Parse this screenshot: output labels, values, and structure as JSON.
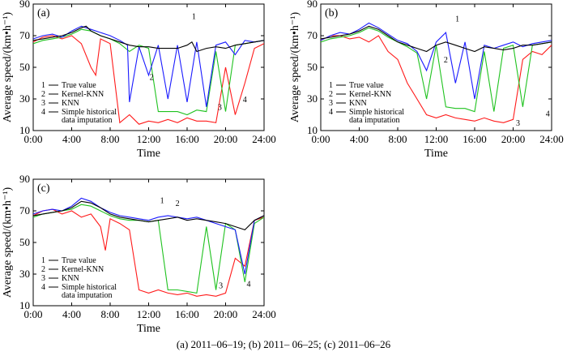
{
  "caption": "(a) 2011–06–19; (b) 2011– 06–25; (c) 2011–06–26",
  "colors": {
    "true_value": "#000000",
    "kernel_knn": "#1a1aff",
    "knn": "#1fc21f",
    "historical": "#ff1a1a"
  },
  "chart_data": [
    {
      "type": "line",
      "panel_label": "(a)",
      "xlabel": "Time",
      "ylabel": "Average speed/(km•h⁻¹)",
      "xlim": [
        0,
        24
      ],
      "ylim": [
        10,
        90
      ],
      "x_ticks": [
        "0:00",
        "4:00",
        "8:00",
        "12:00",
        "16:00",
        "20:00",
        "24:00"
      ],
      "y_ticks": [
        "10",
        "30",
        "50",
        "70",
        "90"
      ],
      "legend": [
        {
          "num": "1",
          "label": "True value"
        },
        {
          "num": "2",
          "label": "Kernel-KNN"
        },
        {
          "num": "3",
          "label": "KNN"
        },
        {
          "num": "4",
          "label": "Simple historical",
          "label2": "data imputation"
        }
      ],
      "annotations": [
        {
          "text": "1",
          "x": 16.7,
          "y": 80.5
        },
        {
          "text": "2",
          "x": 12.3,
          "y": 42
        },
        {
          "text": "3",
          "x": 19.4,
          "y": 23
        },
        {
          "text": "4",
          "x": 22.0,
          "y": 28
        }
      ],
      "series": [
        {
          "key": "true_value",
          "x": [
            0,
            1,
            2,
            3,
            4,
            5,
            5.5,
            6,
            7,
            8,
            9,
            10,
            11,
            12,
            13,
            14,
            15,
            16,
            16.5,
            17,
            18,
            19,
            20,
            21,
            22,
            23,
            24
          ],
          "y": [
            67,
            68,
            69,
            70,
            72,
            75,
            76,
            73,
            70,
            68,
            66,
            64,
            63,
            63,
            62,
            62,
            62,
            64,
            66,
            60,
            62,
            63,
            62,
            64,
            65,
            66,
            67
          ]
        },
        {
          "key": "kernel_knn",
          "x": [
            0,
            1,
            2,
            3,
            4,
            5,
            6,
            7,
            8,
            9,
            9.8,
            10,
            11,
            12,
            13,
            14,
            15,
            16,
            17,
            18,
            19,
            20,
            21,
            22,
            23,
            24
          ],
          "y": [
            68,
            70,
            71,
            69,
            73,
            76,
            74,
            72,
            70,
            67,
            64,
            28,
            63,
            45,
            64,
            30,
            64,
            28,
            66,
            25,
            64,
            66,
            58,
            67,
            66,
            67
          ]
        },
        {
          "key": "knn",
          "x": [
            0,
            1,
            2,
            3,
            4,
            5,
            6,
            7,
            8,
            9,
            10,
            11,
            12,
            13,
            14,
            15,
            16,
            17,
            18,
            19,
            20,
            21,
            22,
            23,
            24
          ],
          "y": [
            65,
            67,
            68,
            69,
            71,
            74,
            73,
            70,
            68,
            65,
            60,
            64,
            62,
            22,
            22,
            22,
            20,
            23,
            22,
            60,
            22,
            64,
            65,
            66,
            67
          ]
        },
        {
          "key": "historical",
          "x": [
            0,
            1,
            2,
            3,
            4,
            5,
            6,
            6.5,
            7,
            8,
            9,
            10,
            11,
            12,
            13,
            14,
            15,
            16,
            17,
            18,
            19,
            20,
            21,
            22,
            23,
            24
          ],
          "y": [
            66,
            69,
            70,
            68,
            70,
            65,
            50,
            45,
            68,
            65,
            15,
            20,
            14,
            16,
            15,
            17,
            15,
            18,
            16,
            16,
            15,
            50,
            20,
            40,
            62,
            65
          ]
        }
      ]
    },
    {
      "type": "line",
      "panel_label": "(b)",
      "xlabel": "Time",
      "ylabel": "Average speed/(km•h⁻¹)",
      "xlim": [
        0,
        24
      ],
      "ylim": [
        10,
        90
      ],
      "x_ticks": [
        "0:00",
        "4:00",
        "8:00",
        "12:00",
        "16:00",
        "20:00",
        "24:00"
      ],
      "y_ticks": [
        "10",
        "30",
        "50",
        "70",
        "90"
      ],
      "legend": [
        {
          "num": "1",
          "label": "True value"
        },
        {
          "num": "2",
          "label": "Kernel-KNN"
        },
        {
          "num": "3",
          "label": "KNN"
        },
        {
          "num": "4",
          "label": "Simple historical",
          "label2": "data imputation"
        }
      ],
      "annotations": [
        {
          "text": "1",
          "x": 14.2,
          "y": 79
        },
        {
          "text": "2",
          "x": 13.0,
          "y": 53
        },
        {
          "text": "3",
          "x": 20.5,
          "y": 13
        },
        {
          "text": "4",
          "x": 23.6,
          "y": 19
        }
      ],
      "series": [
        {
          "key": "true_value",
          "x": [
            0,
            1,
            2,
            3,
            4,
            5,
            6,
            7,
            8,
            9,
            10,
            11,
            12,
            13,
            14,
            15,
            16,
            17,
            18,
            19,
            20,
            21,
            22,
            23,
            24
          ],
          "y": [
            68,
            69,
            70,
            71,
            73,
            76,
            74,
            70,
            66,
            64,
            62,
            60,
            64,
            66,
            64,
            62,
            60,
            63,
            62,
            61,
            62,
            64,
            64,
            65,
            66
          ]
        },
        {
          "key": "kernel_knn",
          "x": [
            0,
            1,
            2,
            3,
            4,
            5,
            6,
            7,
            8,
            9,
            10,
            11,
            12,
            13,
            14,
            15,
            16,
            17,
            18,
            19,
            20,
            21,
            22,
            23,
            24
          ],
          "y": [
            67,
            70,
            72,
            71,
            74,
            78,
            75,
            71,
            67,
            65,
            60,
            48,
            66,
            72,
            40,
            66,
            30,
            64,
            62,
            64,
            66,
            63,
            65,
            66,
            67
          ]
        },
        {
          "key": "knn",
          "x": [
            0,
            1,
            2,
            3,
            4,
            5,
            6,
            7,
            8,
            9,
            10,
            11,
            12,
            13,
            14,
            15,
            16,
            17,
            18,
            19,
            20,
            21,
            22,
            23,
            24
          ],
          "y": [
            66,
            68,
            69,
            70,
            72,
            75,
            73,
            69,
            66,
            63,
            59,
            30,
            64,
            25,
            24,
            24,
            22,
            60,
            22,
            62,
            64,
            25,
            64,
            65,
            66
          ]
        },
        {
          "key": "historical",
          "x": [
            0,
            1,
            2,
            3,
            4,
            5,
            6,
            7,
            8,
            9,
            10,
            11,
            12,
            13,
            14,
            15,
            16,
            17,
            18,
            19,
            20,
            21,
            22,
            23,
            24
          ],
          "y": [
            67,
            70,
            70,
            68,
            69,
            66,
            70,
            60,
            55,
            40,
            30,
            20,
            18,
            20,
            18,
            17,
            16,
            18,
            16,
            15,
            17,
            55,
            60,
            58,
            64
          ]
        }
      ]
    },
    {
      "type": "line",
      "panel_label": "(c)",
      "xlabel": "Time",
      "ylabel": "Average speed/(km•h⁻¹)",
      "xlim": [
        0,
        24
      ],
      "ylim": [
        10,
        90
      ],
      "x_ticks": [
        "0:00",
        "4:00",
        "8:00",
        "12:00",
        "16:00",
        "20:00",
        "24:00"
      ],
      "y_ticks": [
        "10",
        "30",
        "50",
        "70",
        "90"
      ],
      "legend": [
        {
          "num": "1",
          "label": "True value"
        },
        {
          "num": "2",
          "label": "Kernel-KNN"
        },
        {
          "num": "3",
          "label": "KNN"
        },
        {
          "num": "4",
          "label": "Simple historical",
          "label2": "data imputation"
        }
      ],
      "annotations": [
        {
          "text": "1",
          "x": 13.4,
          "y": 75
        },
        {
          "text": "2",
          "x": 15.0,
          "y": 73
        },
        {
          "text": "3",
          "x": 19.5,
          "y": 21
        },
        {
          "text": "4",
          "x": 22.4,
          "y": 22
        }
      ],
      "series": [
        {
          "key": "true_value",
          "x": [
            0,
            1,
            2,
            3,
            4,
            5,
            6,
            7,
            8,
            9,
            10,
            11,
            12,
            13,
            14,
            15,
            16,
            17,
            18,
            19,
            20,
            21,
            22,
            23,
            24
          ],
          "y": [
            67,
            68,
            69,
            70,
            72,
            76,
            75,
            72,
            68,
            66,
            65,
            64,
            63,
            64,
            65,
            66,
            64,
            65,
            64,
            63,
            62,
            60,
            58,
            64,
            67
          ]
        },
        {
          "key": "kernel_knn",
          "x": [
            0,
            1,
            2,
            3,
            4,
            5,
            6,
            7,
            8,
            9,
            10,
            11,
            12,
            13,
            14,
            15,
            16,
            17,
            18,
            19,
            20,
            21,
            22,
            23,
            24
          ],
          "y": [
            68,
            70,
            71,
            70,
            73,
            78,
            76,
            72,
            69,
            67,
            66,
            65,
            64,
            66,
            67,
            66,
            65,
            66,
            64,
            62,
            60,
            58,
            30,
            64,
            67
          ]
        },
        {
          "key": "knn",
          "x": [
            0,
            1,
            2,
            3,
            4,
            5,
            6,
            7,
            8,
            9,
            10,
            11,
            12,
            13,
            14,
            15,
            16,
            17,
            18,
            19,
            20,
            21,
            22,
            23,
            24
          ],
          "y": [
            66,
            68,
            69,
            70,
            71,
            74,
            73,
            70,
            67,
            65,
            64,
            64,
            63,
            64,
            20,
            20,
            19,
            18,
            60,
            20,
            62,
            58,
            25,
            62,
            66
          ]
        },
        {
          "key": "historical",
          "x": [
            0,
            1,
            2,
            3,
            4,
            5,
            6,
            7,
            7.5,
            8,
            9,
            10,
            11,
            12,
            13,
            14,
            15,
            16,
            17,
            18,
            19,
            20,
            21,
            22,
            23,
            24
          ],
          "y": [
            67,
            70,
            71,
            68,
            70,
            66,
            68,
            60,
            45,
            65,
            62,
            58,
            20,
            18,
            20,
            18,
            17,
            18,
            16,
            17,
            16,
            18,
            40,
            35,
            64,
            66
          ]
        }
      ]
    }
  ]
}
